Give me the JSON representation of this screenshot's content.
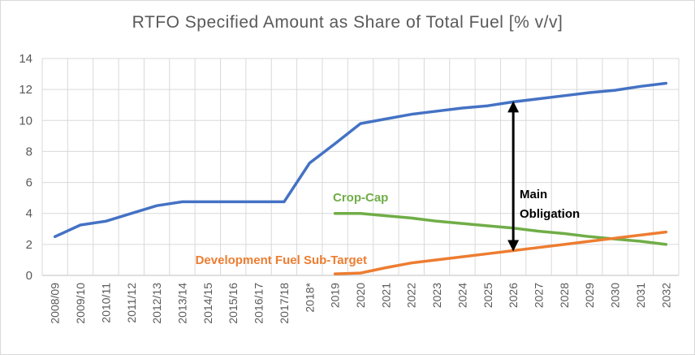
{
  "chart_data": {
    "type": "line",
    "title": "RTFO Specified Amount as Share of Total Fuel [% v/v]",
    "xlabel": "",
    "ylabel": "",
    "ylim": [
      0,
      14
    ],
    "yticks": [
      0,
      2,
      4,
      6,
      8,
      10,
      12,
      14
    ],
    "grid": true,
    "categories": [
      "2008/09",
      "2009/10",
      "2010/11",
      "2011/12",
      "2012/13",
      "2013/14",
      "2014/15",
      "2015/16",
      "2016/17",
      "2017/18",
      "2018*",
      "2019",
      "2020",
      "2021",
      "2022",
      "2023",
      "2024",
      "2025",
      "2026",
      "2027",
      "2028",
      "2029",
      "2030",
      "2031",
      "2032"
    ],
    "series": [
      {
        "name": "Main Obligation",
        "color": "#4472c4",
        "values": [
          2.5,
          3.25,
          3.5,
          4.0,
          4.5,
          4.75,
          4.75,
          4.75,
          4.75,
          4.75,
          7.25,
          8.5,
          9.8,
          10.1,
          10.4,
          10.6,
          10.8,
          10.95,
          11.2,
          11.4,
          11.6,
          11.8,
          11.95,
          12.2,
          12.4
        ]
      },
      {
        "name": "Crop-Cap",
        "color": "#70ad47",
        "values": [
          null,
          null,
          null,
          null,
          null,
          null,
          null,
          null,
          null,
          null,
          null,
          4.0,
          4.0,
          3.85,
          3.7,
          3.5,
          3.35,
          3.2,
          3.05,
          2.85,
          2.7,
          2.5,
          2.35,
          2.2,
          2.0
        ]
      },
      {
        "name": "Development Fuel Sub-Target",
        "color": "#ed7d31",
        "values": [
          null,
          null,
          null,
          null,
          null,
          null,
          null,
          null,
          null,
          null,
          null,
          0.1,
          0.15,
          0.5,
          0.8,
          1.0,
          1.2,
          1.4,
          1.6,
          1.8,
          2.0,
          2.2,
          2.4,
          2.6,
          2.8
        ]
      }
    ],
    "annotations": [
      {
        "text": "Crop-Cap",
        "color": "#70ad47"
      },
      {
        "text": "Development Fuel Sub-Target",
        "color": "#ed7d31"
      },
      {
        "text": "Main",
        "color": "#000000"
      },
      {
        "text": "Obligation",
        "color": "#000000"
      }
    ],
    "arrow": {
      "x_category": "2026",
      "from": 1.6,
      "to": 11.2
    }
  }
}
